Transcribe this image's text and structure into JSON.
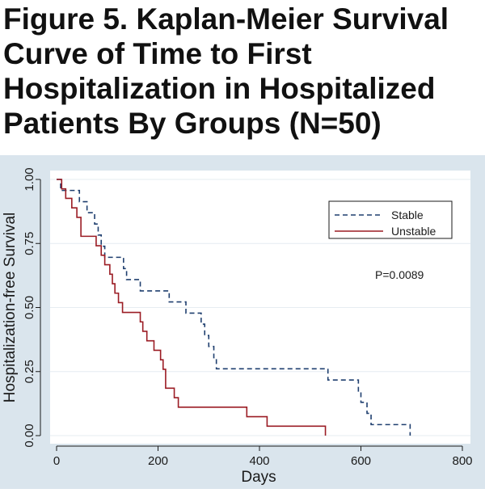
{
  "title": "Figure 5. Kaplan-Meier Survival Curve of Time to First Hospitalization in Hospitalized Patients By Groups (N=50)",
  "colors": {
    "outer_background": "#dae5ed",
    "plot_background": "#ffffff",
    "stable": "#1f3f6f",
    "unstable": "#9b1c24",
    "text": "#1a1a1a",
    "grid": "#e6ecf1"
  },
  "chart_data": {
    "type": "line",
    "title": "Figure 5. Kaplan-Meier Survival Curve of Time to First Hospitalization in Hospitalized Patients By Groups (N=50)",
    "xlabel": "Days",
    "ylabel": "Hospitalization-free Survival",
    "xlim": [
      0,
      800
    ],
    "ylim": [
      0,
      1
    ],
    "xticks": [
      0,
      200,
      400,
      600,
      800
    ],
    "yticks": [
      "0.00",
      "0.25",
      "0.50",
      "0.75",
      "1.00"
    ],
    "grid": true,
    "legend": "top-right",
    "annotation": "P=0.0089",
    "series": [
      {
        "name": "Stable",
        "style": "dashed",
        "step": true,
        "points": [
          [
            0,
            1.0
          ],
          [
            8,
            0.957
          ],
          [
            45,
            0.913
          ],
          [
            60,
            0.87
          ],
          [
            75,
            0.826
          ],
          [
            82,
            0.783
          ],
          [
            88,
            0.739
          ],
          [
            95,
            0.696
          ],
          [
            132,
            0.652
          ],
          [
            138,
            0.609
          ],
          [
            165,
            0.565
          ],
          [
            222,
            0.522
          ],
          [
            255,
            0.478
          ],
          [
            285,
            0.435
          ],
          [
            292,
            0.391
          ],
          [
            300,
            0.348
          ],
          [
            310,
            0.304
          ],
          [
            315,
            0.261
          ],
          [
            535,
            0.217
          ],
          [
            595,
            0.174
          ],
          [
            600,
            0.13
          ],
          [
            612,
            0.087
          ],
          [
            620,
            0.043
          ],
          [
            697,
            0.043
          ],
          [
            697,
            0.0
          ]
        ]
      },
      {
        "name": "Unstable",
        "style": "solid",
        "step": true,
        "points": [
          [
            0,
            1.0
          ],
          [
            10,
            0.963
          ],
          [
            18,
            0.926
          ],
          [
            30,
            0.889
          ],
          [
            40,
            0.852
          ],
          [
            48,
            0.778
          ],
          [
            78,
            0.741
          ],
          [
            88,
            0.704
          ],
          [
            95,
            0.667
          ],
          [
            105,
            0.63
          ],
          [
            110,
            0.593
          ],
          [
            115,
            0.556
          ],
          [
            122,
            0.519
          ],
          [
            130,
            0.481
          ],
          [
            165,
            0.444
          ],
          [
            170,
            0.407
          ],
          [
            178,
            0.37
          ],
          [
            192,
            0.333
          ],
          [
            205,
            0.296
          ],
          [
            210,
            0.259
          ],
          [
            215,
            0.185
          ],
          [
            232,
            0.148
          ],
          [
            240,
            0.111
          ],
          [
            375,
            0.074
          ],
          [
            415,
            0.037
          ],
          [
            530,
            0.037
          ],
          [
            530,
            0.0
          ]
        ]
      }
    ]
  }
}
